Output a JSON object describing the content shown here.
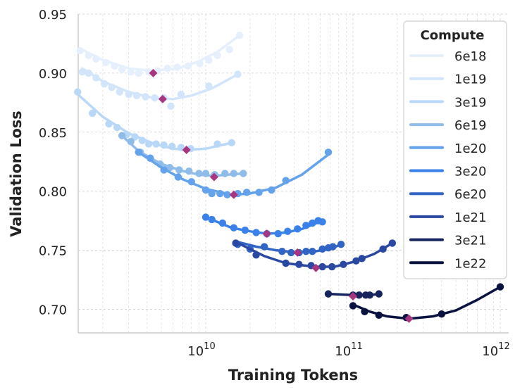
{
  "chart_data": {
    "type": "scatter",
    "title": "",
    "xlabel": "Training Tokens",
    "ylabel": "Validation Loss",
    "x_scale": "log",
    "xlim": [
      1300000000.0,
      1100000000000.0
    ],
    "ylim": [
      0.68,
      0.95
    ],
    "x_ticks": [
      {
        "value": 10000000000.0,
        "base": "10",
        "exp": "10"
      },
      {
        "value": 100000000000.0,
        "base": "10",
        "exp": "11"
      },
      {
        "value": 1000000000000.0,
        "base": "10",
        "exp": "12"
      }
    ],
    "y_ticks": [
      0.7,
      0.75,
      0.8,
      0.85,
      0.9,
      0.95
    ],
    "y_tick_labels": [
      "0.70",
      "0.75",
      "0.80",
      "0.85",
      "0.90",
      "0.95"
    ],
    "grid": true,
    "legend_title": "Compute",
    "legend_position": "top-right",
    "optimum_color": "#a8357f",
    "series": [
      {
        "name": "6e18",
        "color": "#e6f0fd",
        "points": [
          [
            1400000000.0,
            0.919
          ],
          [
            1600000000.0,
            0.915
          ],
          [
            1800000000.0,
            0.912
          ],
          [
            2100000000.0,
            0.909
          ],
          [
            2400000000.0,
            0.906
          ],
          [
            2700000000.0,
            0.903
          ],
          [
            3100000000.0,
            0.901
          ],
          [
            3500000000.0,
            0.9
          ],
          [
            4100000000.0,
            0.901
          ],
          [
            4700000000.0,
            0.902
          ],
          [
            5500000000.0,
            0.904
          ],
          [
            6400000000.0,
            0.905
          ],
          [
            7600000000.0,
            0.906
          ],
          [
            9100000000.0,
            0.908
          ],
          [
            10500000000.0,
            0.911
          ],
          [
            12000000000.0,
            0.915
          ],
          [
            14500000000.0,
            0.92
          ],
          [
            17000000000.0,
            0.932
          ]
        ],
        "fit": [
          [
            1400000000.0,
            0.921
          ],
          [
            2000000000.0,
            0.911
          ],
          [
            3000000000.0,
            0.904
          ],
          [
            4400000000.0,
            0.902
          ],
          [
            6500000000.0,
            0.904
          ],
          [
            9000000000.0,
            0.91
          ],
          [
            12000000000.0,
            0.918
          ],
          [
            17000000000.0,
            0.932
          ]
        ],
        "optimum": [
          4400000000.0,
          0.9
        ]
      },
      {
        "name": "1e19",
        "color": "#d2e5fb",
        "points": [
          [
            1450000000.0,
            0.901
          ],
          [
            1600000000.0,
            0.9
          ],
          [
            1800000000.0,
            0.896
          ],
          [
            2050000000.0,
            0.891
          ],
          [
            2300000000.0,
            0.888
          ],
          [
            2600000000.0,
            0.884
          ],
          [
            3000000000.0,
            0.882
          ],
          [
            3400000000.0,
            0.881
          ],
          [
            3900000000.0,
            0.88
          ],
          [
            4500000000.0,
            0.879
          ],
          [
            5200000000.0,
            0.879
          ],
          [
            5800000000.0,
            0.872
          ],
          [
            6800000000.0,
            0.882
          ],
          [
            10500000000.0,
            0.889
          ],
          [
            16500000000.0,
            0.899
          ]
        ],
        "fit": [
          [
            1450000000.0,
            0.904
          ],
          [
            2000000000.0,
            0.893
          ],
          [
            3000000000.0,
            0.884
          ],
          [
            4400000000.0,
            0.879
          ],
          [
            6000000000.0,
            0.878
          ],
          [
            8000000000.0,
            0.881
          ],
          [
            11000000000.0,
            0.887
          ],
          [
            16500000000.0,
            0.899
          ]
        ],
        "optimum": [
          5100000000.0,
          0.878
        ]
      },
      {
        "name": "3e19",
        "color": "#b9d7f7",
        "points": [
          [
            1350000000.0,
            0.884
          ],
          [
            1700000000.0,
            0.866
          ],
          [
            2200000000.0,
            0.857
          ],
          [
            2500000000.0,
            0.854
          ],
          [
            2900000000.0,
            0.848
          ],
          [
            3300000000.0,
            0.846
          ],
          [
            3700000000.0,
            0.843
          ],
          [
            4100000000.0,
            0.84
          ],
          [
            4600000000.0,
            0.84
          ],
          [
            5200000000.0,
            0.839
          ],
          [
            5900000000.0,
            0.838
          ],
          [
            6800000000.0,
            0.837
          ],
          [
            7900000000.0,
            0.836
          ],
          [
            12000000000.0,
            0.84
          ],
          [
            15000000000.0,
            0.841
          ]
        ],
        "fit": [
          [
            1300000000.0,
            0.884
          ],
          [
            2000000000.0,
            0.863
          ],
          [
            3000000000.0,
            0.849
          ],
          [
            4500000000.0,
            0.84
          ],
          [
            6000000000.0,
            0.836
          ],
          [
            7500000000.0,
            0.835
          ],
          [
            10000000000.0,
            0.836
          ],
          [
            15000000000.0,
            0.841
          ]
        ],
        "optimum": [
          7400000000.0,
          0.835
        ]
      },
      {
        "name": "6e19",
        "color": "#90bce9",
        "points": [
          [
            2700000000.0,
            0.847
          ],
          [
            3100000000.0,
            0.842
          ],
          [
            3600000000.0,
            0.833
          ],
          [
            4200000000.0,
            0.828
          ],
          [
            4900000000.0,
            0.823
          ],
          [
            5700000000.0,
            0.82
          ],
          [
            6600000000.0,
            0.818
          ],
          [
            7700000000.0,
            0.817
          ],
          [
            9000000000.0,
            0.815
          ],
          [
            10000000000.0,
            0.815
          ],
          [
            11500000000.0,
            0.814
          ],
          [
            13500000000.0,
            0.815
          ],
          [
            15500000000.0,
            0.815
          ],
          [
            18000000000.0,
            0.815
          ]
        ],
        "fit": [
          [
            2700000000.0,
            0.847
          ],
          [
            3500000000.0,
            0.834
          ],
          [
            5000000000.0,
            0.823
          ],
          [
            7000000000.0,
            0.817
          ],
          [
            9000000000.0,
            0.814
          ],
          [
            11400000000.0,
            0.813
          ],
          [
            14000000000.0,
            0.814
          ],
          [
            18000000000.0,
            0.815
          ]
        ],
        "optimum": [
          11400000000.0,
          0.812
        ]
      },
      {
        "name": "1e20",
        "color": "#64a3ec",
        "points": [
          [
            3500000000.0,
            0.833
          ],
          [
            4200000000.0,
            0.828
          ],
          [
            5200000000.0,
            0.818
          ],
          [
            6500000000.0,
            0.812
          ],
          [
            8000000000.0,
            0.808
          ],
          [
            10000000000.0,
            0.801
          ],
          [
            11000000000.0,
            0.798
          ],
          [
            12500000000.0,
            0.798
          ],
          [
            14000000000.0,
            0.797
          ],
          [
            16500000000.0,
            0.798
          ],
          [
            19000000000.0,
            0.799
          ],
          [
            23000000000.0,
            0.799
          ],
          [
            28000000000.0,
            0.801
          ],
          [
            35000000000.0,
            0.809
          ],
          [
            68000000000.0,
            0.833
          ]
        ],
        "fit": [
          [
            3500000000.0,
            0.833
          ],
          [
            5000000000.0,
            0.82
          ],
          [
            7000000000.0,
            0.81
          ],
          [
            10000000000.0,
            0.802
          ],
          [
            15000000000.0,
            0.797
          ],
          [
            20000000000.0,
            0.798
          ],
          [
            30000000000.0,
            0.803
          ],
          [
            45000000000.0,
            0.814
          ],
          [
            68000000000.0,
            0.831
          ]
        ],
        "optimum": [
          15500000000.0,
          0.797
        ]
      },
      {
        "name": "3e20",
        "color": "#3a82ea",
        "points": [
          [
            10000000000.0,
            0.778
          ],
          [
            11000000000.0,
            0.776
          ],
          [
            13000000000.0,
            0.773
          ],
          [
            15500000000.0,
            0.769
          ],
          [
            18500000000.0,
            0.767
          ],
          [
            22000000000.0,
            0.765
          ],
          [
            26000000000.0,
            0.764
          ],
          [
            31000000000.0,
            0.764
          ],
          [
            36000000000.0,
            0.766
          ],
          [
            42000000000.0,
            0.768
          ],
          [
            48000000000.0,
            0.771
          ],
          [
            53000000000.0,
            0.773
          ],
          [
            58000000000.0,
            0.775
          ],
          [
            62000000000.0,
            0.774
          ]
        ],
        "fit": [
          [
            10000000000.0,
            0.778
          ],
          [
            15000000000.0,
            0.769
          ],
          [
            20000000000.0,
            0.766
          ],
          [
            26000000000.0,
            0.764
          ],
          [
            35000000000.0,
            0.765
          ],
          [
            45000000000.0,
            0.768
          ],
          [
            62000000000.0,
            0.775
          ]
        ],
        "optimum": [
          26000000000.0,
          0.764
        ]
      },
      {
        "name": "6e20",
        "color": "#3264c4",
        "points": [
          [
            16500000000.0,
            0.755
          ],
          [
            20000000000.0,
            0.751
          ],
          [
            25000000000.0,
            0.753
          ],
          [
            33000000000.0,
            0.749
          ],
          [
            38000000000.0,
            0.748
          ],
          [
            43000000000.0,
            0.748
          ],
          [
            48000000000.0,
            0.749
          ],
          [
            53000000000.0,
            0.749
          ],
          [
            62000000000.0,
            0.751
          ],
          [
            68000000000.0,
            0.752
          ],
          [
            73000000000.0,
            0.753
          ],
          [
            83000000000.0,
            0.755
          ]
        ],
        "fit": [
          [
            16500000000.0,
            0.757
          ],
          [
            22000000000.0,
            0.753
          ],
          [
            30000000000.0,
            0.75
          ],
          [
            42000000000.0,
            0.748
          ],
          [
            55000000000.0,
            0.749
          ],
          [
            70000000000.0,
            0.751
          ],
          [
            83000000000.0,
            0.755
          ]
        ],
        "optimum": [
          42000000000.0,
          0.748
        ]
      },
      {
        "name": "1e21",
        "color": "#2a48a2",
        "points": [
          [
            16000000000.0,
            0.756
          ],
          [
            22000000000.0,
            0.746
          ],
          [
            35000000000.0,
            0.739
          ],
          [
            43000000000.0,
            0.738
          ],
          [
            52000000000.0,
            0.737
          ],
          [
            62000000000.0,
            0.736
          ],
          [
            72000000000.0,
            0.736
          ],
          [
            86000000000.0,
            0.738
          ],
          [
            105000000000.0,
            0.741
          ],
          [
            115000000000.0,
            0.743
          ],
          [
            160000000000.0,
            0.751
          ],
          [
            185000000000.0,
            0.756
          ]
        ],
        "fit": [
          [
            16000000000.0,
            0.757
          ],
          [
            25000000000.0,
            0.745
          ],
          [
            35000000000.0,
            0.739
          ],
          [
            55000000000.0,
            0.736
          ],
          [
            75000000000.0,
            0.736
          ],
          [
            100000000000.0,
            0.74
          ],
          [
            140000000000.0,
            0.747
          ],
          [
            185000000000.0,
            0.756
          ]
        ],
        "optimum": [
          56000000000.0,
          0.735
        ]
      },
      {
        "name": "3e21",
        "color": "#16245e",
        "points": [
          [
            68000000000.0,
            0.713
          ],
          [
            100000000000.0,
            0.712
          ],
          [
            110000000000.0,
            0.712
          ],
          [
            122000000000.0,
            0.712
          ],
          [
            130000000000.0,
            0.712
          ],
          [
            150000000000.0,
            0.713
          ]
        ],
        "fit": [
          [
            68000000000.0,
            0.713
          ],
          [
            100000000000.0,
            0.712
          ],
          [
            130000000000.0,
            0.712
          ],
          [
            150000000000.0,
            0.713
          ]
        ],
        "optimum": [
          100000000000.0,
          0.711
        ]
      },
      {
        "name": "1e22",
        "color": "#0a1240",
        "points": [
          [
            100000000000.0,
            0.703
          ],
          [
            120000000000.0,
            0.698
          ],
          [
            150000000000.0,
            0.695
          ],
          [
            230000000000.0,
            0.693
          ],
          [
            400000000000.0,
            0.696
          ],
          [
            1000000000000.0,
            0.719
          ]
        ],
        "fit": [
          [
            100000000000.0,
            0.704
          ],
          [
            130000000000.0,
            0.698
          ],
          [
            170000000000.0,
            0.694
          ],
          [
            240000000000.0,
            0.692
          ],
          [
            350000000000.0,
            0.694
          ],
          [
            500000000000.0,
            0.699
          ],
          [
            700000000000.0,
            0.708
          ],
          [
            1000000000000.0,
            0.719
          ]
        ],
        "optimum": [
          240000000000.0,
          0.692
        ]
      }
    ]
  }
}
